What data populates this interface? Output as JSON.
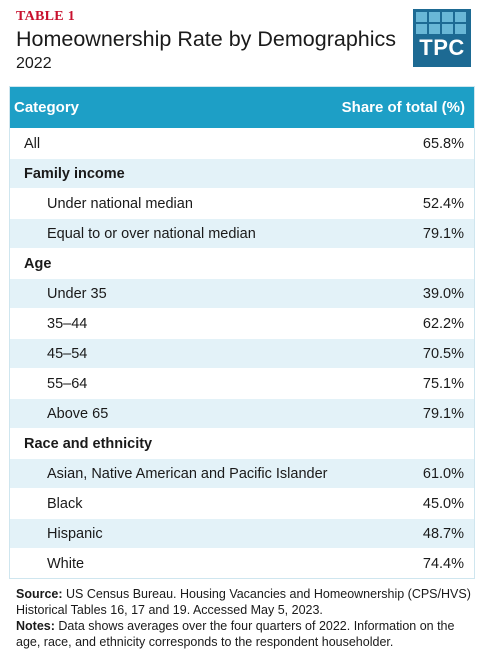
{
  "header": {
    "table_label": "TABLE 1",
    "title": "Homeownership Rate by Demographics",
    "subtitle": "2022",
    "logo_text": "TPC"
  },
  "table": {
    "columns": [
      "Category",
      "Share of total (%)"
    ],
    "rows": [
      {
        "type": "top",
        "label": "All",
        "value": "65.8%"
      },
      {
        "type": "section",
        "label": "Family income",
        "value": ""
      },
      {
        "type": "sub",
        "label": "Under national median",
        "value": "52.4%"
      },
      {
        "type": "sub",
        "label": "Equal to or over national median",
        "value": "79.1%"
      },
      {
        "type": "section",
        "label": "Age",
        "value": ""
      },
      {
        "type": "sub",
        "label": "Under 35",
        "value": "39.0%"
      },
      {
        "type": "sub",
        "label": "35–44",
        "value": "62.2%"
      },
      {
        "type": "sub",
        "label": "45–54",
        "value": "70.5%"
      },
      {
        "type": "sub",
        "label": "55–64",
        "value": "75.1%"
      },
      {
        "type": "sub",
        "label": "Above 65",
        "value": "79.1%"
      },
      {
        "type": "section",
        "label": "Race and ethnicity",
        "value": ""
      },
      {
        "type": "sub",
        "label": "Asian, Native American and Pacific Islander",
        "value": "61.0%"
      },
      {
        "type": "sub",
        "label": "Black",
        "value": "45.0%"
      },
      {
        "type": "sub",
        "label": "Hispanic",
        "value": "48.7%"
      },
      {
        "type": "sub",
        "label": "White",
        "value": "74.4%"
      }
    ]
  },
  "footer": {
    "source_label": "Source:",
    "source_text": "US Census Bureau. Housing Vacancies and Homeownership (CPS/HVS) Historical Tables 16, 17 and 19. Accessed May 5, 2023.",
    "notes_label": "Notes:",
    "notes_text": "Data shows averages over the four quarters of 2022. Information on the age, race, and ethnicity corresponds to the respondent householder."
  },
  "colors": {
    "header_bg": "#1d9fc6",
    "row_shade": "#e3f2f8",
    "table_label": "#c8102e",
    "logo_bg": "#1d6a93",
    "logo_squares": "#69b7d6"
  }
}
